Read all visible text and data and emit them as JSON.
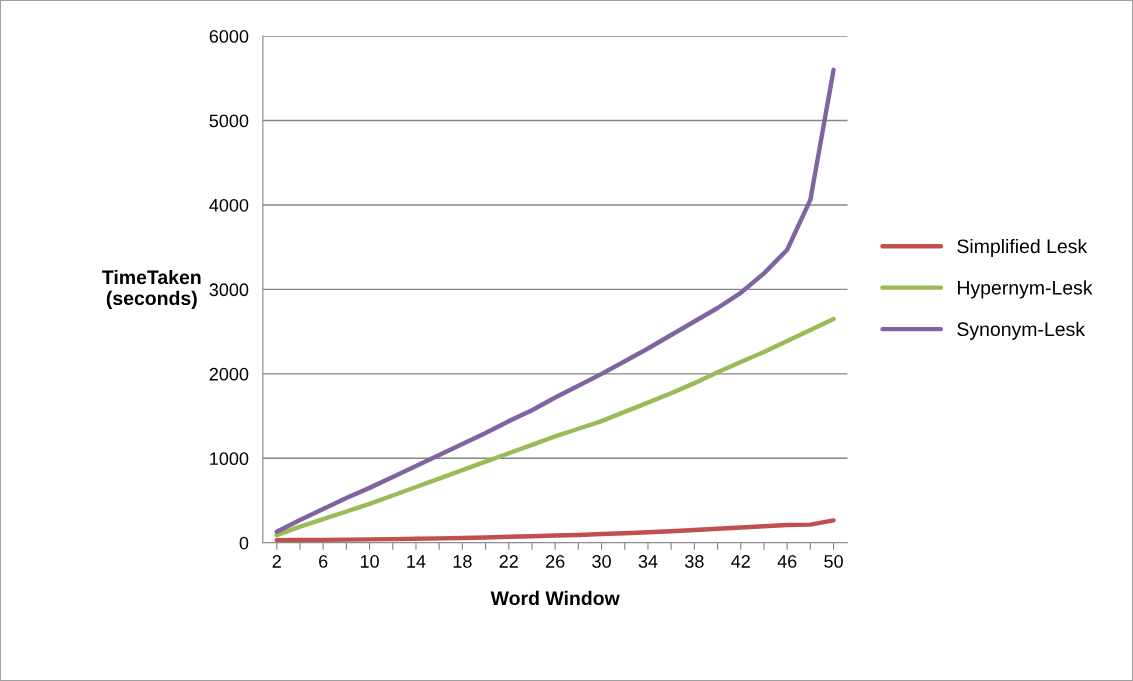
{
  "chart_data": {
    "type": "line",
    "xlabel": "Word Window",
    "ylabel": "TimeTaken\n(seconds)",
    "categories": [
      "2",
      null,
      "6",
      null,
      "10",
      null,
      "14",
      null,
      "18",
      null,
      "22",
      null,
      "26",
      null,
      "30",
      null,
      "34",
      null,
      "38",
      null,
      "42",
      null,
      "46",
      null,
      "50"
    ],
    "series": [
      {
        "name": "Simplified Lesk",
        "color": "#c0504d",
        "values": [
          30,
          32,
          34,
          37,
          40,
          43,
          47,
          52,
          57,
          63,
          70,
          77,
          85,
          93,
          103,
          113,
          125,
          137,
          150,
          165,
          180,
          195,
          210,
          215,
          265
        ]
      },
      {
        "name": "Hypernym-Lesk",
        "color": "#9bbb59",
        "values": [
          90,
          190,
          280,
          370,
          460,
          560,
          660,
          760,
          860,
          960,
          1060,
          1160,
          1260,
          1350,
          1440,
          1550,
          1660,
          1770,
          1890,
          2020,
          2140,
          2260,
          2390,
          2520,
          2650
        ]
      },
      {
        "name": "Synonym-Lesk",
        "color": "#8064a2",
        "values": [
          130,
          270,
          400,
          530,
          650,
          780,
          910,
          1040,
          1170,
          1300,
          1440,
          1570,
          1720,
          1860,
          2000,
          2150,
          2300,
          2460,
          2620,
          2780,
          2960,
          3190,
          3470,
          4060,
          5600
        ]
      }
    ],
    "ylim": [
      0,
      6000
    ],
    "yticks": [
      0,
      1000,
      2000,
      3000,
      4000,
      5000,
      6000
    ],
    "grid": "y",
    "legend": "right",
    "marker": "none",
    "line_style": "solid"
  }
}
